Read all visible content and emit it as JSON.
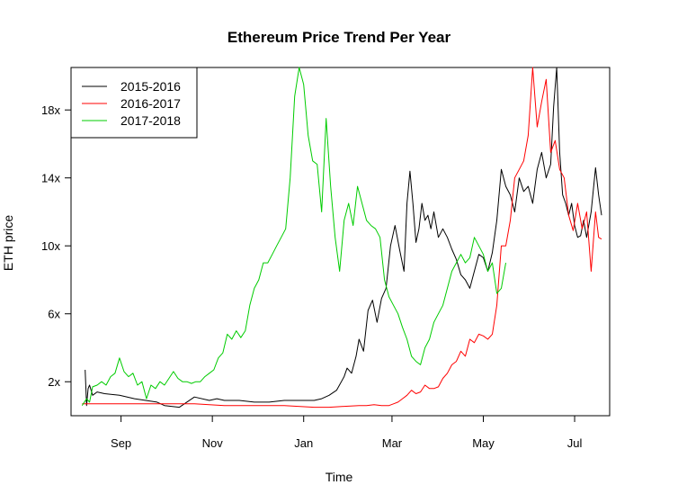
{
  "chart_data": {
    "type": "line",
    "title": "Ethereum Price Trend Per Year",
    "xlabel": "Time",
    "ylabel": "ETH price",
    "x_unit": "day_of_year_from_Aug1",
    "xlim": [
      0,
      355
    ],
    "ylim": [
      0,
      20.5
    ],
    "x_ticks": [
      {
        "label": "Sep",
        "x": 31
      },
      {
        "label": "Nov",
        "x": 92
      },
      {
        "label": "Jan",
        "x": 153
      },
      {
        "label": "Mar",
        "x": 212
      },
      {
        "label": "May",
        "x": 273
      },
      {
        "label": "Jul",
        "x": 334
      }
    ],
    "y_ticks": [
      {
        "label": "2x",
        "y": 2
      },
      {
        "label": "6x",
        "y": 6
      },
      {
        "label": "10x",
        "y": 10
      },
      {
        "label": "14x",
        "y": 14
      },
      {
        "label": "18x",
        "y": 18
      }
    ],
    "legend": {
      "position": "top-left"
    },
    "series": [
      {
        "name": "2015-2016",
        "color": "#000000",
        "x": [
          7,
          8,
          9,
          10,
          12,
          15,
          20,
          30,
          40,
          55,
          60,
          70,
          80,
          90,
          95,
          100,
          110,
          120,
          130,
          140,
          150,
          160,
          165,
          170,
          175,
          180,
          182,
          185,
          188,
          190,
          193,
          196,
          199,
          202,
          205,
          208,
          211,
          214,
          217,
          220,
          222,
          224,
          226,
          228,
          230,
          232,
          234,
          236,
          238,
          240,
          243,
          246,
          249,
          252,
          255,
          258,
          261,
          264,
          267,
          270,
          273,
          276,
          279,
          282,
          285,
          288,
          291,
          294,
          297,
          300,
          303,
          306,
          309,
          312,
          315,
          318,
          320,
          322,
          324,
          326,
          328,
          330,
          332,
          334,
          336,
          338,
          340,
          342,
          345,
          348,
          350,
          352
        ],
        "y": [
          2.7,
          0.6,
          1.6,
          1.8,
          1.2,
          1.4,
          1.3,
          1.2,
          1.0,
          0.8,
          0.6,
          0.5,
          1.1,
          0.9,
          1.0,
          0.9,
          0.9,
          0.8,
          0.8,
          0.9,
          0.9,
          0.9,
          1.0,
          1.2,
          1.5,
          2.3,
          2.8,
          2.5,
          3.5,
          4.5,
          3.8,
          6.2,
          6.8,
          5.5,
          6.9,
          7.5,
          10.0,
          11.2,
          9.8,
          8.5,
          12.5,
          14.4,
          12.5,
          10.2,
          11.0,
          12.5,
          11.5,
          11.8,
          11.0,
          12.0,
          10.5,
          11.0,
          10.5,
          9.8,
          9.2,
          8.3,
          8.0,
          7.5,
          8.5,
          9.5,
          9.3,
          8.5,
          9.6,
          11.5,
          14.5,
          13.5,
          13.0,
          12.0,
          14.0,
          13.2,
          13.5,
          12.5,
          14.5,
          15.5,
          14.0,
          14.8,
          18.2,
          20.5,
          15.5,
          13.0,
          12.5,
          11.8,
          12.5,
          11.2,
          10.5,
          10.6,
          11.5,
          10.5,
          12.0,
          14.6,
          13.0,
          11.8
        ]
      },
      {
        "name": "2016-2017",
        "color": "#ff0000",
        "x": [
          5,
          20,
          40,
          60,
          80,
          100,
          120,
          140,
          160,
          170,
          180,
          190,
          195,
          200,
          205,
          210,
          213,
          216,
          219,
          222,
          225,
          228,
          231,
          234,
          237,
          240,
          243,
          246,
          249,
          252,
          255,
          258,
          261,
          264,
          267,
          270,
          273,
          276,
          279,
          282,
          285,
          288,
          291,
          294,
          297,
          300,
          303,
          306,
          309,
          312,
          315,
          318,
          321,
          324,
          327,
          330,
          333,
          336,
          339,
          342,
          345,
          348,
          350,
          352
        ],
        "y": [
          0.7,
          0.7,
          0.7,
          0.7,
          0.7,
          0.6,
          0.6,
          0.6,
          0.5,
          0.5,
          0.55,
          0.6,
          0.6,
          0.65,
          0.6,
          0.6,
          0.7,
          0.8,
          1.0,
          1.2,
          1.5,
          1.3,
          1.4,
          1.8,
          1.6,
          1.6,
          1.7,
          2.2,
          2.5,
          3.0,
          3.2,
          3.8,
          3.5,
          4.5,
          4.3,
          4.8,
          4.7,
          4.5,
          4.8,
          6.5,
          10.0,
          10.0,
          11.5,
          14.0,
          14.5,
          15.0,
          16.5,
          20.5,
          17.0,
          18.5,
          19.8,
          15.5,
          16.2,
          14.5,
          14.0,
          11.8,
          10.9,
          12.5,
          11.0,
          12.0,
          8.5,
          12.0,
          10.5,
          10.4
        ]
      },
      {
        "name": "2017-2018",
        "color": "#00cc00",
        "x": [
          5,
          8,
          10,
          12,
          15,
          18,
          21,
          24,
          27,
          30,
          33,
          36,
          39,
          42,
          45,
          48,
          51,
          54,
          57,
          60,
          63,
          66,
          69,
          72,
          75,
          78,
          81,
          84,
          87,
          90,
          93,
          96,
          99,
          102,
          105,
          108,
          111,
          114,
          117,
          120,
          123,
          126,
          129,
          132,
          135,
          138,
          141,
          144,
          147,
          150,
          153,
          156,
          159,
          162,
          165,
          168,
          171,
          174,
          177,
          180,
          183,
          186,
          189,
          192,
          195,
          198,
          201,
          204,
          207,
          210,
          213,
          216,
          219,
          222,
          225,
          228,
          231,
          234,
          237,
          240,
          243,
          246,
          249,
          252,
          255,
          258,
          261,
          264,
          267,
          270,
          273,
          276,
          279,
          282,
          285,
          288
        ],
        "y": [
          0.6,
          1.0,
          0.8,
          1.7,
          1.8,
          2.0,
          1.8,
          2.3,
          2.5,
          3.4,
          2.6,
          2.3,
          2.5,
          1.8,
          2.0,
          1.0,
          1.8,
          1.6,
          2.0,
          1.8,
          2.2,
          2.6,
          2.2,
          2.0,
          2.0,
          1.9,
          2.0,
          2.0,
          2.3,
          2.5,
          2.7,
          3.4,
          3.7,
          4.8,
          4.5,
          5.0,
          4.6,
          5.0,
          6.5,
          7.5,
          8.0,
          9.0,
          9.0,
          9.5,
          10.0,
          10.5,
          11.0,
          14.0,
          18.8,
          20.5,
          19.5,
          16.5,
          15.0,
          14.8,
          12.0,
          17.5,
          13.5,
          10.5,
          8.5,
          11.5,
          12.5,
          11.2,
          13.5,
          12.5,
          11.5,
          11.2,
          11.0,
          10.5,
          8.0,
          7.0,
          6.5,
          6.0,
          5.2,
          4.5,
          3.5,
          3.2,
          3.0,
          4.0,
          4.5,
          5.5,
          6.0,
          6.5,
          7.5,
          8.5,
          9.0,
          9.5,
          9.0,
          9.3,
          10.5,
          10.0,
          9.5,
          8.5,
          9.0,
          7.2,
          7.5,
          9.0
        ]
      }
    ]
  }
}
